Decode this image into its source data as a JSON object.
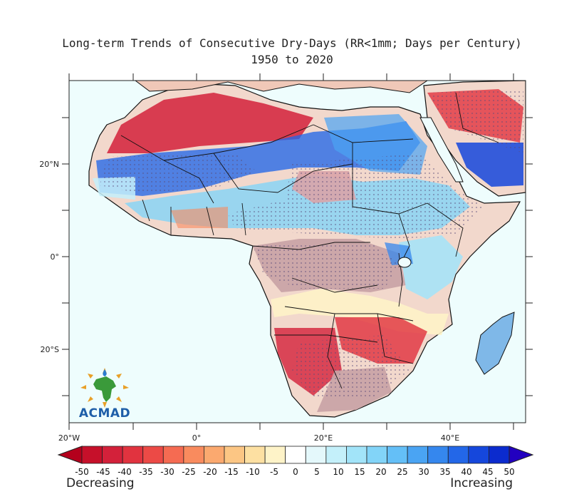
{
  "title_line1": "Long-term Trends of Consecutive Dry-Days (RR<1mm; Days per Century)",
  "title_line2": "1950 to 2020",
  "lat_labels": [
    "20°N",
    "0°",
    "20°S"
  ],
  "lon_labels": [
    "20°W",
    "0°",
    "20°E",
    "40°E"
  ],
  "colorbar": {
    "ticks": [
      "-50",
      "-45",
      "-40",
      "-35",
      "-30",
      "-25",
      "-20",
      "-15",
      "-10",
      "-5",
      "0",
      "5",
      "10",
      "15",
      "20",
      "25",
      "30",
      "35",
      "40",
      "45",
      "50"
    ],
    "colors": [
      "#c6102a",
      "#d3213a",
      "#e1333f",
      "#ec4a46",
      "#f56b52",
      "#f98b5e",
      "#fba96f",
      "#fcc684",
      "#fde0a2",
      "#fef3c8",
      "#ffffff",
      "#e4f8fb",
      "#c4f0fa",
      "#a2e4f9",
      "#82d4f8",
      "#64bff7",
      "#4aa4f3",
      "#3587ee",
      "#2367e8",
      "#1547dc",
      "#0b2bce"
    ],
    "low_color": "#b4001c",
    "high_color": "#2200c0"
  },
  "legend_left": "Decreasing",
  "legend_right": "Increasing",
  "logo_text": "ACMAD",
  "palette": {
    "ocean": "#eefdfd",
    "land_base": "#f2d8cc",
    "border": "#111111"
  }
}
